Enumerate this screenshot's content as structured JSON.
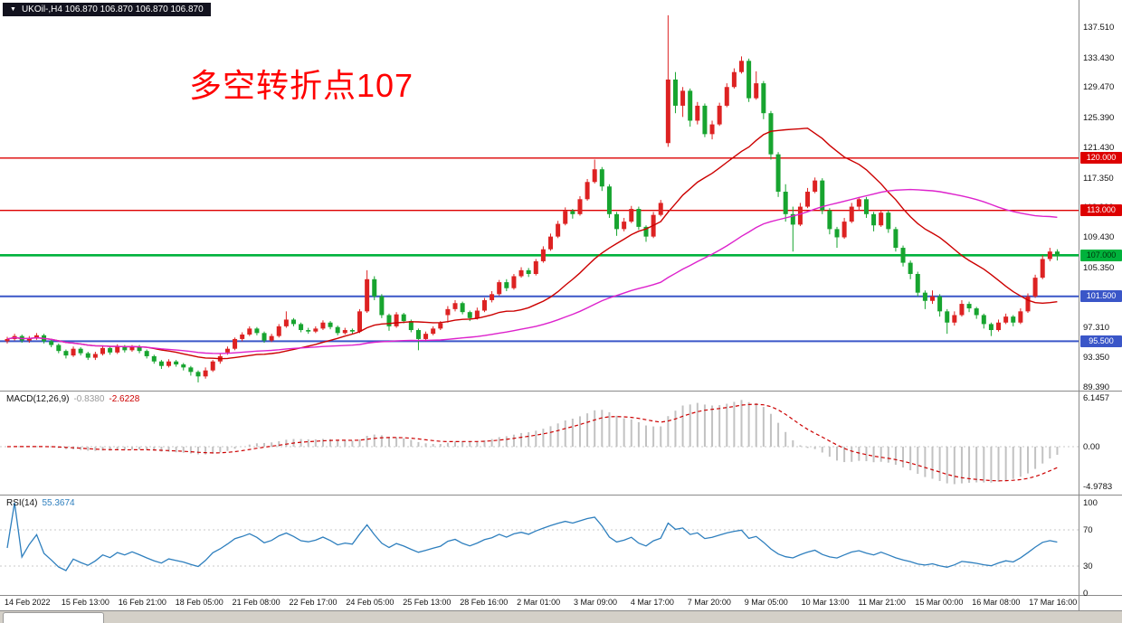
{
  "window": {
    "dropdown_icon": "▼",
    "symbol_info": "UKOil-,H4 106.870 106.870 106.870 106.870"
  },
  "annotation": {
    "text": "多空转折点107",
    "color": "#ff0000"
  },
  "colors": {
    "bull_candle": "#dd2222",
    "bear_candle": "#17a42f",
    "ma_fast": "#cc0000",
    "ma_slow": "#dd22cc",
    "macd_histogram": "#c2c2c2",
    "macd_signal": "#cc0000",
    "rsi_line": "#2e7fbe",
    "hline_red": "#dd0000",
    "hline_green": "#00b23c",
    "hline_blue": "#3a56c8"
  },
  "indicators": {
    "macd": {
      "label": "MACD(12,26,9)",
      "value_main": "-0.8380",
      "value_signal": "-2.6228",
      "fast": 12,
      "slow": 26,
      "signal": 9,
      "axis_ticks": [
        {
          "text": "6.1457",
          "value": 6.1457
        },
        {
          "text": "0.00",
          "value": 0
        },
        {
          "text": "-4.9783",
          "value": -4.9783
        }
      ]
    },
    "rsi": {
      "label": "RSI(14)",
      "value": "55.3674",
      "period": 14,
      "levels": [
        70,
        30
      ],
      "axis_ticks": [
        {
          "text": "100",
          "value": 100
        },
        {
          "text": "70",
          "value": 70
        },
        {
          "text": "30",
          "value": 30
        },
        {
          "text": "0",
          "value": 0
        }
      ]
    }
  },
  "chart_data": {
    "type": "candlestick",
    "symbol": "UKOil",
    "timeframe": "H4",
    "price_axis_ticks": [
      {
        "text": "137.510",
        "value": 137.51
      },
      {
        "text": "133.430",
        "value": 133.43
      },
      {
        "text": "129.470",
        "value": 129.47
      },
      {
        "text": "125.390",
        "value": 125.39
      },
      {
        "text": "121.430",
        "value": 121.43
      },
      {
        "text": "117.350",
        "value": 117.35
      },
      {
        "text": "113.390",
        "value": 113.39
      },
      {
        "text": "109.430",
        "value": 109.43
      },
      {
        "text": "105.350",
        "value": 105.35
      },
      {
        "text": "101.390",
        "value": 101.39
      },
      {
        "text": "97.310",
        "value": 97.31
      },
      {
        "text": "93.350",
        "value": 93.35
      },
      {
        "text": "89.390",
        "value": 89.39
      }
    ],
    "hlines": [
      {
        "label": "120.000",
        "value": 120.0,
        "color": "red"
      },
      {
        "label": "113.000",
        "value": 113.0,
        "color": "red"
      },
      {
        "label": "107.000",
        "value": 107.0,
        "color": "green"
      },
      {
        "label": "101.500",
        "value": 101.5,
        "color": "blue"
      },
      {
        "label": "95.500",
        "value": 95.5,
        "color": "blue"
      }
    ],
    "time_labels": [
      "14 Feb 2022",
      "15 Feb 13:00",
      "16 Feb 21:00",
      "18 Feb 05:00",
      "21 Feb 08:00",
      "22 Feb 17:00",
      "24 Feb 05:00",
      "25 Feb 13:00",
      "28 Feb 16:00",
      "2 Mar 01:00",
      "3 Mar 09:00",
      "4 Mar 17:00",
      "7 Mar 20:00",
      "9 Mar 05:00",
      "10 Mar 13:00",
      "11 Mar 21:00",
      "15 Mar 00:00",
      "16 Mar 08:00",
      "17 Mar 16:00"
    ],
    "moving_averages": [
      {
        "name": "fast",
        "period": 20
      },
      {
        "name": "slow",
        "period": 55
      }
    ],
    "ohlc": [
      [
        95.5,
        96.1,
        95.2,
        95.8
      ],
      [
        95.8,
        96.5,
        95.6,
        96.2
      ],
      [
        96.2,
        96.4,
        95.3,
        95.6
      ],
      [
        95.6,
        96.2,
        95.3,
        95.9
      ],
      [
        95.9,
        96.6,
        95.7,
        96.3
      ],
      [
        96.3,
        96.5,
        95.2,
        95.5
      ],
      [
        95.5,
        95.7,
        94.7,
        95.0
      ],
      [
        95.0,
        95.2,
        93.9,
        94.2
      ],
      [
        94.2,
        94.4,
        93.2,
        93.6
      ],
      [
        93.6,
        94.8,
        93.4,
        94.5
      ],
      [
        94.5,
        94.7,
        93.6,
        93.9
      ],
      [
        93.9,
        94.1,
        93.0,
        93.3
      ],
      [
        93.3,
        94.1,
        93.0,
        93.8
      ],
      [
        93.8,
        94.9,
        93.6,
        94.6
      ],
      [
        94.6,
        94.8,
        93.7,
        94.0
      ],
      [
        94.0,
        95.1,
        93.8,
        94.8
      ],
      [
        94.8,
        95.0,
        94.0,
        94.3
      ],
      [
        94.3,
        95.0,
        94.1,
        94.8
      ],
      [
        94.8,
        95.0,
        93.9,
        94.2
      ],
      [
        94.2,
        94.4,
        93.2,
        93.5
      ],
      [
        93.5,
        93.7,
        92.5,
        92.8
      ],
      [
        92.8,
        93.0,
        91.8,
        92.2
      ],
      [
        92.2,
        93.1,
        92.0,
        92.8
      ],
      [
        92.8,
        93.0,
        92.1,
        92.4
      ],
      [
        92.4,
        92.6,
        91.6,
        92.0
      ],
      [
        92.0,
        92.2,
        90.9,
        91.4
      ],
      [
        91.4,
        91.6,
        90.0,
        90.8
      ],
      [
        90.8,
        92.0,
        90.5,
        91.6
      ],
      [
        91.6,
        93.0,
        91.4,
        92.8
      ],
      [
        92.8,
        93.8,
        92.5,
        93.5
      ],
      [
        94.0,
        94.8,
        93.7,
        94.5
      ],
      [
        94.5,
        96.0,
        94.3,
        95.8
      ],
      [
        95.8,
        96.7,
        95.5,
        96.4
      ],
      [
        96.4,
        97.5,
        96.2,
        97.2
      ],
      [
        97.2,
        97.4,
        96.3,
        96.6
      ],
      [
        96.6,
        96.8,
        95.3,
        95.6
      ],
      [
        95.6,
        96.5,
        95.4,
        96.2
      ],
      [
        96.2,
        97.8,
        96.0,
        97.5
      ],
      [
        97.5,
        99.5,
        97.3,
        98.4
      ],
      [
        98.4,
        98.6,
        97.5,
        97.8
      ],
      [
        97.8,
        98.0,
        96.7,
        97.0
      ],
      [
        97.0,
        97.3,
        96.5,
        96.8
      ],
      [
        96.8,
        97.5,
        96.6,
        97.2
      ],
      [
        97.2,
        98.3,
        97.0,
        98.0
      ],
      [
        98.0,
        98.2,
        97.1,
        97.4
      ],
      [
        97.4,
        97.6,
        96.3,
        96.6
      ],
      [
        96.6,
        97.3,
        96.4,
        97.0
      ],
      [
        97.0,
        97.2,
        96.5,
        96.8
      ],
      [
        96.8,
        99.8,
        96.6,
        99.5
      ],
      [
        99.5,
        105.0,
        99.3,
        103.8
      ],
      [
        103.8,
        104.2,
        101.0,
        101.5
      ],
      [
        101.5,
        101.8,
        98.6,
        99.0
      ],
      [
        99.0,
        99.2,
        96.9,
        97.5
      ],
      [
        97.5,
        99.4,
        97.3,
        99.1
      ],
      [
        99.1,
        99.3,
        97.9,
        98.2
      ],
      [
        98.2,
        98.4,
        96.7,
        97.0
      ],
      [
        97.0,
        97.2,
        94.3,
        95.8
      ],
      [
        95.8,
        96.8,
        95.5,
        96.5
      ],
      [
        96.5,
        97.5,
        96.3,
        97.2
      ],
      [
        97.2,
        98.2,
        97.0,
        97.9
      ],
      [
        99.0,
        100.2,
        98.0,
        99.8
      ],
      [
        99.8,
        101.0,
        99.5,
        100.6
      ],
      [
        100.6,
        100.8,
        99.1,
        99.4
      ],
      [
        99.4,
        99.6,
        98.2,
        98.6
      ],
      [
        98.6,
        100.0,
        98.4,
        99.6
      ],
      [
        99.6,
        101.3,
        99.4,
        101.0
      ],
      [
        101.0,
        102.2,
        100.7,
        101.8
      ],
      [
        101.8,
        103.7,
        101.6,
        103.4
      ],
      [
        103.4,
        103.8,
        102.2,
        102.6
      ],
      [
        102.6,
        104.5,
        102.4,
        104.2
      ],
      [
        104.2,
        105.4,
        104.0,
        105.0
      ],
      [
        105.0,
        105.3,
        104.1,
        104.5
      ],
      [
        104.5,
        106.5,
        104.3,
        106.2
      ],
      [
        106.2,
        108.2,
        106.0,
        107.8
      ],
      [
        107.8,
        109.9,
        107.6,
        109.5
      ],
      [
        109.5,
        111.6,
        109.3,
        111.2
      ],
      [
        111.2,
        113.4,
        111.0,
        112.9
      ],
      [
        112.9,
        113.2,
        111.9,
        112.5
      ],
      [
        112.5,
        114.9,
        112.3,
        114.5
      ],
      [
        114.5,
        117.2,
        114.3,
        116.8
      ],
      [
        116.8,
        119.8,
        116.6,
        118.5
      ],
      [
        118.5,
        118.8,
        115.6,
        116.2
      ],
      [
        116.2,
        116.5,
        112.0,
        112.5
      ],
      [
        112.5,
        112.8,
        109.6,
        110.5
      ],
      [
        110.5,
        112.0,
        110.2,
        111.5
      ],
      [
        111.5,
        113.6,
        111.3,
        113.2
      ],
      [
        113.2,
        113.5,
        110.4,
        110.8
      ],
      [
        110.8,
        111.0,
        108.8,
        109.5
      ],
      [
        109.5,
        112.8,
        109.3,
        112.4
      ],
      [
        112.4,
        114.4,
        112.2,
        114.0
      ],
      [
        122.0,
        139.1,
        121.5,
        130.5
      ],
      [
        130.5,
        131.5,
        126.0,
        127.0
      ],
      [
        127.0,
        129.5,
        125.5,
        129.0
      ],
      [
        129.0,
        129.3,
        124.2,
        125.0
      ],
      [
        125.0,
        127.5,
        124.5,
        127.0
      ],
      [
        127.0,
        127.3,
        122.8,
        123.2
      ],
      [
        123.2,
        125.0,
        122.5,
        124.5
      ],
      [
        124.5,
        127.4,
        124.3,
        127.0
      ],
      [
        127.0,
        130.0,
        126.8,
        129.5
      ],
      [
        129.5,
        132.0,
        129.3,
        131.5
      ],
      [
        131.5,
        133.6,
        131.3,
        133.0
      ],
      [
        133.0,
        133.3,
        127.5,
        128.0
      ],
      [
        128.0,
        131.6,
        127.8,
        130.0
      ],
      [
        130.0,
        130.3,
        125.2,
        126.0
      ],
      [
        126.0,
        126.3,
        119.8,
        120.5
      ],
      [
        120.5,
        120.8,
        114.8,
        115.5
      ],
      [
        115.5,
        116.5,
        111.5,
        112.5
      ],
      [
        112.5,
        113.5,
        107.5,
        111.1
      ],
      [
        111.1,
        114.0,
        110.9,
        113.5
      ],
      [
        113.5,
        116.0,
        113.3,
        115.5
      ],
      [
        115.5,
        117.4,
        115.3,
        117.0
      ],
      [
        117.0,
        117.3,
        112.5,
        113.0
      ],
      [
        113.0,
        113.3,
        109.8,
        110.5
      ],
      [
        110.5,
        110.8,
        108.0,
        109.4
      ],
      [
        109.4,
        112.0,
        109.2,
        111.5
      ],
      [
        111.5,
        114.0,
        111.3,
        113.5
      ],
      [
        113.5,
        114.8,
        113.0,
        114.5
      ],
      [
        114.5,
        114.8,
        112.0,
        112.5
      ],
      [
        112.5,
        112.8,
        110.2,
        111.0
      ],
      [
        111.0,
        113.0,
        110.8,
        112.7
      ],
      [
        112.7,
        113.0,
        110.0,
        110.5
      ],
      [
        110.5,
        110.8,
        107.5,
        108.0
      ],
      [
        108.0,
        108.3,
        105.5,
        106.0
      ],
      [
        106.0,
        106.3,
        103.8,
        104.5
      ],
      [
        104.5,
        104.8,
        101.5,
        102.0
      ],
      [
        102.0,
        102.3,
        99.8,
        100.9
      ],
      [
        100.9,
        102.3,
        100.5,
        101.5
      ],
      [
        101.5,
        101.8,
        98.8,
        99.5
      ],
      [
        99.5,
        99.8,
        96.5,
        98.0
      ],
      [
        98.0,
        99.5,
        97.6,
        99.0
      ],
      [
        99.0,
        101.0,
        98.8,
        100.5
      ],
      [
        100.5,
        100.8,
        99.4,
        99.9
      ],
      [
        99.9,
        100.1,
        98.5,
        99.0
      ],
      [
        99.0,
        99.2,
        97.2,
        97.8
      ],
      [
        97.8,
        98.0,
        96.2,
        97.0
      ],
      [
        97.0,
        98.4,
        96.8,
        98.0
      ],
      [
        98.0,
        99.2,
        97.8,
        98.8
      ],
      [
        98.8,
        99.0,
        97.5,
        98.0
      ],
      [
        98.0,
        99.9,
        97.8,
        99.5
      ],
      [
        99.5,
        101.9,
        99.3,
        101.5
      ],
      [
        101.5,
        104.4,
        101.3,
        104.0
      ],
      [
        104.0,
        107.0,
        103.8,
        106.5
      ],
      [
        106.5,
        108.0,
        106.2,
        107.5
      ],
      [
        107.5,
        107.8,
        106.3,
        106.9
      ]
    ]
  }
}
